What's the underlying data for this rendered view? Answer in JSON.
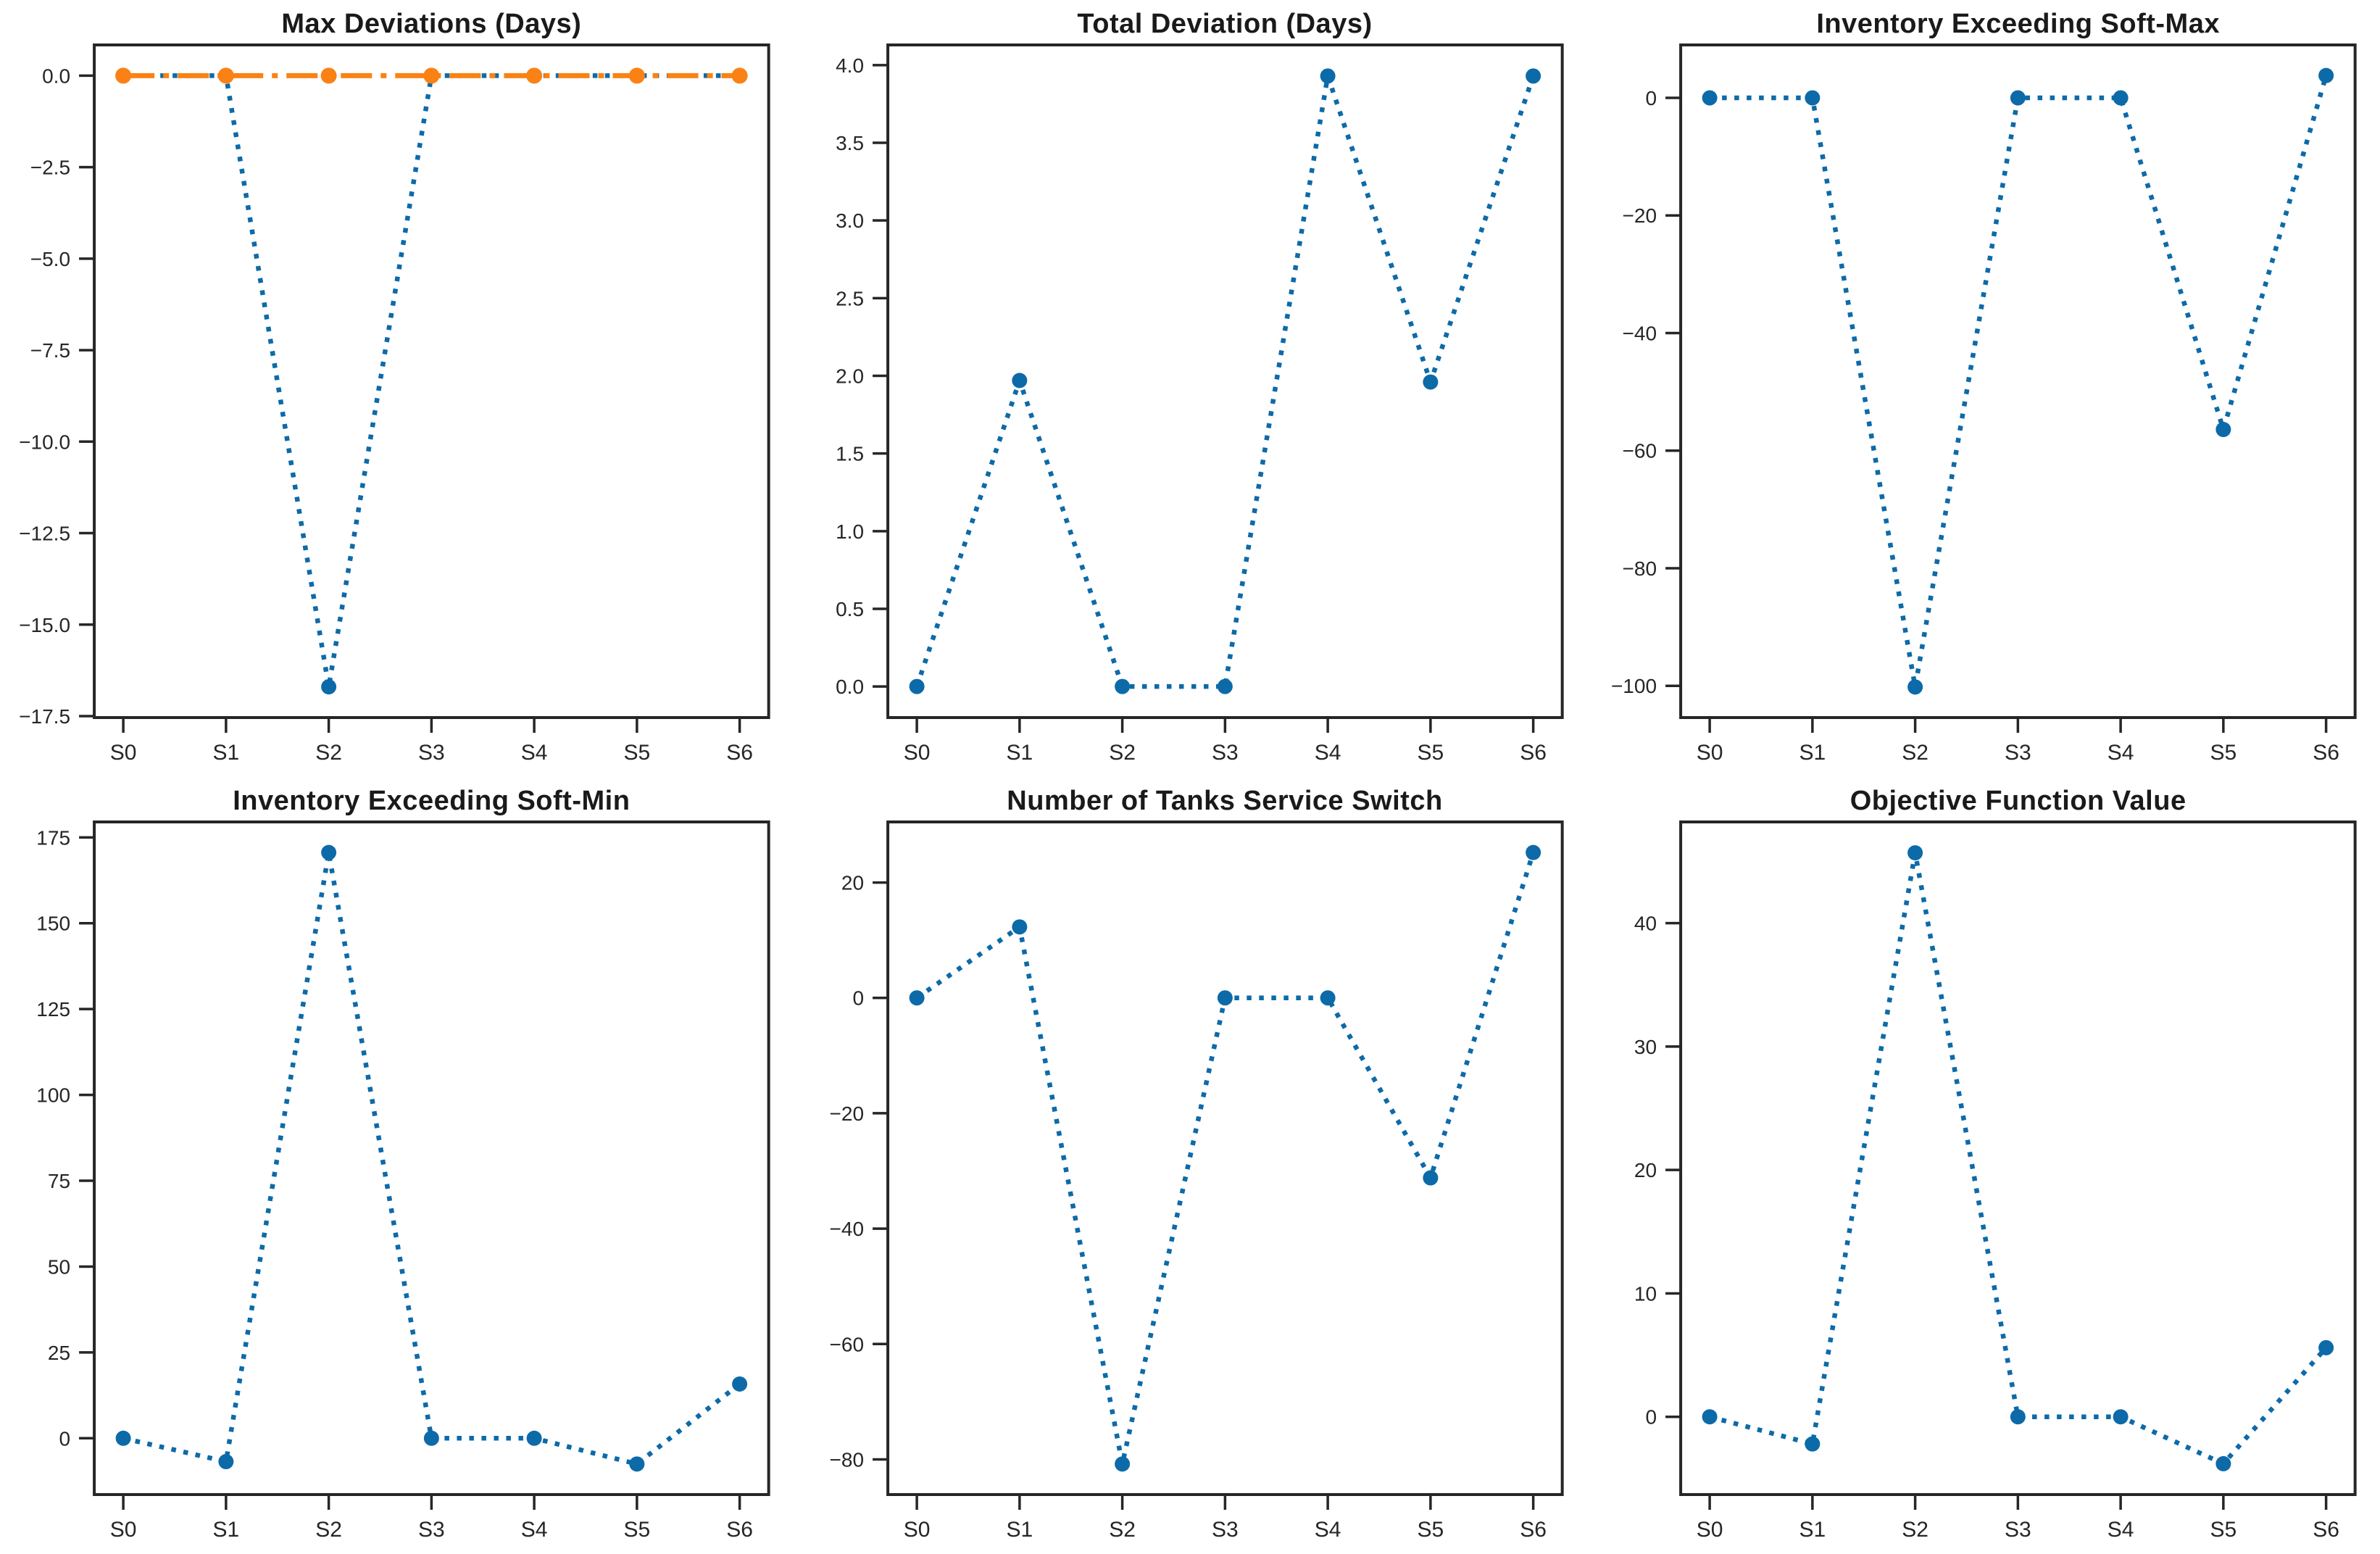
{
  "figure": {
    "background": "#ffffff",
    "title_color": "#1a1a1a",
    "tick_color": "#262626",
    "spine_color": "#262626",
    "series_colors": {
      "blue": "#0d6aa8",
      "orange": "#fa8214"
    }
  },
  "chart_data": [
    {
      "type": "line",
      "title": "Max Deviations (Days)",
      "xlabel": "",
      "ylabel": "",
      "grid": false,
      "legend_position": "none",
      "categories": [
        "S0",
        "S1",
        "S2",
        "S3",
        "S4",
        "S5",
        "S6"
      ],
      "series": [
        {
          "name": "series_blue",
          "color": "blue",
          "linestyle": "dotted",
          "values": [
            0,
            0,
            -16.7,
            0,
            0,
            0,
            0
          ]
        },
        {
          "name": "series_orange",
          "color": "orange",
          "linestyle": "dashdot",
          "values": [
            0,
            0,
            0,
            0,
            0,
            0,
            0
          ]
        }
      ],
      "yticks": [
        0,
        -2.5,
        -5,
        -7.5,
        -10,
        -12.5,
        -15,
        -17.5
      ],
      "ytick_labels": [
        "0.0",
        "−2.5",
        "−5.0",
        "−7.5",
        "−10.0",
        "−12.5",
        "−15.0",
        "−17.5"
      ],
      "ylim": [
        -17.54,
        0.84
      ]
    },
    {
      "type": "line",
      "title": "Total Deviation (Days)",
      "xlabel": "",
      "ylabel": "",
      "grid": false,
      "legend_position": "none",
      "categories": [
        "S0",
        "S1",
        "S2",
        "S3",
        "S4",
        "S5",
        "S6"
      ],
      "series": [
        {
          "name": "series_blue",
          "color": "blue",
          "linestyle": "dotted",
          "values": [
            0,
            1.97,
            0,
            0,
            3.93,
            1.96,
            3.93
          ]
        }
      ],
      "yticks": [
        4,
        3.5,
        3,
        2.5,
        2,
        1.5,
        1,
        0.5,
        0
      ],
      "ytick_labels": [
        "4.0",
        "3.5",
        "3.0",
        "2.5",
        "2.0",
        "1.5",
        "1.0",
        "0.5",
        "0.0"
      ],
      "ylim": [
        -0.2,
        4.13
      ]
    },
    {
      "type": "line",
      "title": "Inventory Exceeding Soft-Max",
      "xlabel": "",
      "ylabel": "",
      "grid": false,
      "legend_position": "none",
      "categories": [
        "S0",
        "S1",
        "S2",
        "S3",
        "S4",
        "S5",
        "S6"
      ],
      "series": [
        {
          "name": "series_blue",
          "color": "blue",
          "linestyle": "dotted",
          "values": [
            0,
            0,
            -100.2,
            0,
            0,
            -56.4,
            3.8
          ]
        }
      ],
      "yticks": [
        0,
        -20,
        -40,
        -60,
        -80,
        -100
      ],
      "ytick_labels": [
        "0",
        "−20",
        "−40",
        "−60",
        "−80",
        "−100"
      ],
      "ylim": [
        -105.4,
        9.0
      ]
    },
    {
      "type": "line",
      "title": "Inventory Exceeding Soft-Min",
      "xlabel": "",
      "ylabel": "",
      "grid": false,
      "legend_position": "none",
      "categories": [
        "S0",
        "S1",
        "S2",
        "S3",
        "S4",
        "S5",
        "S6"
      ],
      "series": [
        {
          "name": "series_blue",
          "color": "blue",
          "linestyle": "dotted",
          "values": [
            0,
            -6.8,
            170.6,
            0,
            0,
            -7.5,
            15.8
          ]
        }
      ],
      "yticks": [
        175,
        150,
        125,
        100,
        75,
        50,
        25,
        0
      ],
      "ytick_labels": [
        "175",
        "150",
        "125",
        "100",
        "75",
        "50",
        "25",
        "0"
      ],
      "ylim": [
        -16.4,
        179.5
      ]
    },
    {
      "type": "line",
      "title": "Number of Tanks Service Switch",
      "xlabel": "",
      "ylabel": "",
      "grid": false,
      "legend_position": "none",
      "categories": [
        "S0",
        "S1",
        "S2",
        "S3",
        "S4",
        "S5",
        "S6"
      ],
      "series": [
        {
          "name": "series_blue",
          "color": "blue",
          "linestyle": "dotted",
          "values": [
            0,
            12.3,
            -80.8,
            0,
            0,
            -31.2,
            25.2
          ]
        }
      ],
      "yticks": [
        20,
        0,
        -20,
        -40,
        -60,
        -80
      ],
      "ytick_labels": [
        "20",
        "0",
        "−20",
        "−40",
        "−60",
        "−80"
      ],
      "ylim": [
        -86.1,
        30.5
      ]
    },
    {
      "type": "line",
      "title": "Objective Function Value",
      "xlabel": "",
      "ylabel": "",
      "grid": false,
      "legend_position": "none",
      "categories": [
        "S0",
        "S1",
        "S2",
        "S3",
        "S4",
        "S5",
        "S6"
      ],
      "series": [
        {
          "name": "series_blue",
          "color": "blue",
          "linestyle": "dotted",
          "values": [
            0,
            -2.2,
            45.7,
            0,
            0,
            -3.8,
            5.6
          ]
        }
      ],
      "yticks": [
        40,
        30,
        20,
        10,
        0
      ],
      "ytick_labels": [
        "40",
        "30",
        "20",
        "10",
        "0"
      ],
      "ylim": [
        -6.3,
        48.2
      ]
    }
  ]
}
